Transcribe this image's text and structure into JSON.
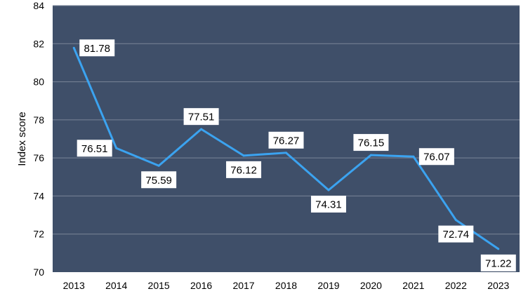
{
  "chart_data": {
    "type": "line",
    "title": "",
    "xlabel": "",
    "ylabel": "Index score",
    "ylim": [
      70,
      84
    ],
    "yticks": [
      70,
      72,
      74,
      76,
      78,
      80,
      82,
      84
    ],
    "grid": true,
    "legend": "none",
    "categories": [
      "2013",
      "2014",
      "2015",
      "2016",
      "2017",
      "2018",
      "2019",
      "2020",
      "2021",
      "2022",
      "2023"
    ],
    "series": [
      {
        "values": [
          81.78,
          76.51,
          75.59,
          77.51,
          76.12,
          76.27,
          74.31,
          76.15,
          76.07,
          72.74,
          71.22
        ],
        "labels": [
          "81.78",
          "76.51",
          "75.59",
          "77.51",
          "76.12",
          "76.27",
          "74.31",
          "76.15",
          "76.07",
          "72.74",
          "71.22"
        ],
        "label_positions": [
          "right",
          "left",
          "below",
          "above",
          "below",
          "above",
          "below",
          "above",
          "right",
          "below",
          "below"
        ]
      }
    ],
    "colors": {
      "plot_background": "#3f4f69",
      "gridline": "#7a8598",
      "line": "#3ba3f0",
      "label_background": "#ffffff"
    }
  }
}
